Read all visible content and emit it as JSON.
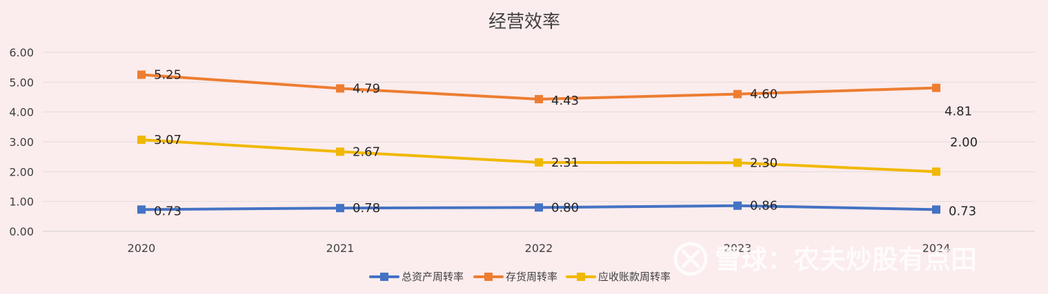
{
  "chart_data": {
    "type": "line",
    "title": "经营效率",
    "categories": [
      "2020",
      "2021",
      "2022",
      "2023",
      "2024"
    ],
    "y_ticks": [
      "0.00",
      "1.00",
      "2.00",
      "3.00",
      "4.00",
      "5.00",
      "6.00"
    ],
    "ylim": [
      0,
      6
    ],
    "grid": true,
    "legend_position": "bottom",
    "series": [
      {
        "name": "总资产周转率",
        "color": "#4472c4",
        "values": [
          0.73,
          0.78,
          0.8,
          0.86,
          0.73
        ],
        "labels": [
          "0.73",
          "0.78",
          "0.80",
          "0.86",
          "0.73"
        ]
      },
      {
        "name": "存货周转率",
        "color": "#ed7d31",
        "values": [
          5.25,
          4.79,
          4.43,
          4.6,
          4.81
        ],
        "labels": [
          "5.25",
          "4.79",
          "4.43",
          "4.60",
          "4.81"
        ]
      },
      {
        "name": "应收账款周转率",
        "color": "#f0b800",
        "values": [
          3.07,
          2.67,
          2.31,
          2.3,
          2.0
        ],
        "labels": [
          "3.07",
          "2.67",
          "2.31",
          "2.30",
          "2.00"
        ]
      }
    ]
  },
  "watermark": {
    "text": "雪球：农夫炒股有点田",
    "icon": "snowball-logo"
  }
}
